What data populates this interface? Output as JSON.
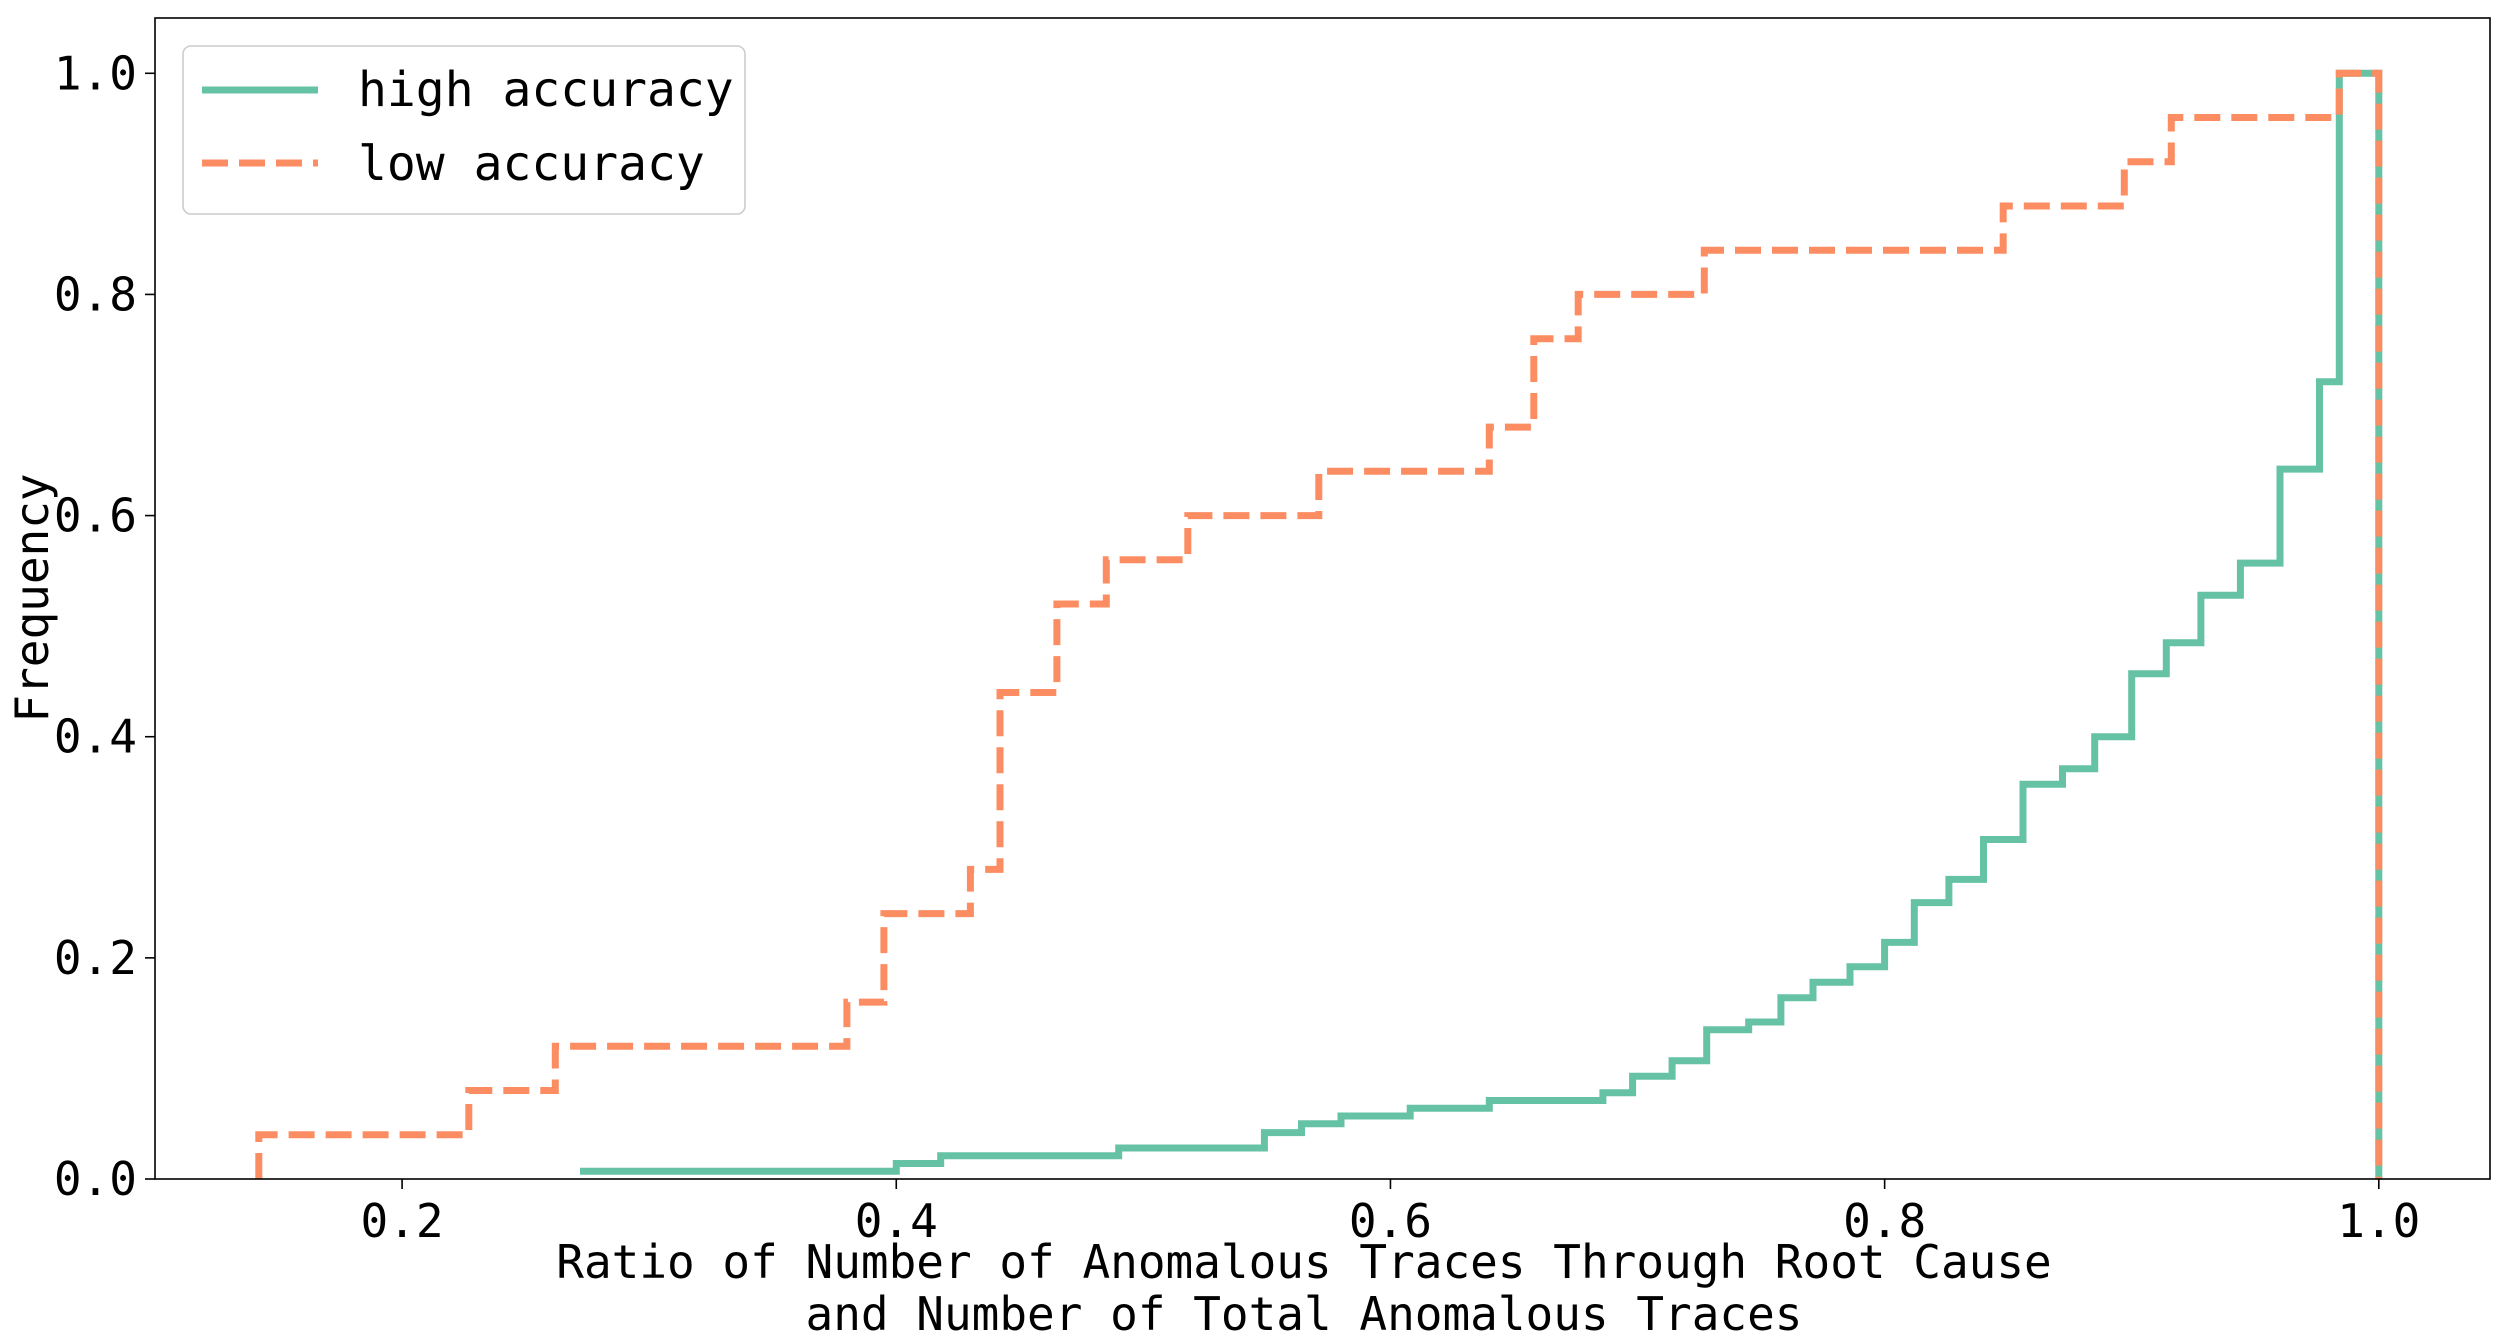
{
  "chart_data": {
    "type": "line",
    "drawstyle": "steps-post",
    "title": "",
    "xlabel_lines": [
      "Ratio of Number of Anomalous Traces Through Root Cause",
      "and Number of Total Anomalous Traces"
    ],
    "ylabel": "Frequency",
    "xlim": [
      0.1,
      1.045
    ],
    "ylim": [
      0,
      1.05
    ],
    "xticks": [
      0.2,
      0.4,
      0.6,
      0.8,
      1.0
    ],
    "xtick_labels": [
      "0.2",
      "0.4",
      "0.6",
      "0.8",
      "1.0"
    ],
    "yticks": [
      0.0,
      0.2,
      0.4,
      0.6,
      0.8,
      1.0
    ],
    "ytick_labels": [
      "0.0",
      "0.2",
      "0.4",
      "0.6",
      "0.8",
      "1.0"
    ],
    "grid": false,
    "legend_position": "top-left",
    "series": [
      {
        "name": "high accuracy",
        "color": "#66c2a5",
        "linestyle": "solid",
        "x": [
          0.272,
          0.4,
          0.418,
          0.49,
          0.549,
          0.564,
          0.58,
          0.608,
          0.64,
          0.686,
          0.698,
          0.714,
          0.728,
          0.745,
          0.758,
          0.771,
          0.786,
          0.8,
          0.812,
          0.826,
          0.84,
          0.856,
          0.872,
          0.885,
          0.9,
          0.914,
          0.928,
          0.944,
          0.96,
          0.976,
          0.984,
          1.0
        ],
        "y": [
          0.007,
          0.014,
          0.021,
          0.028,
          0.042,
          0.05,
          0.057,
          0.064,
          0.071,
          0.078,
          0.093,
          0.107,
          0.135,
          0.142,
          0.164,
          0.178,
          0.192,
          0.214,
          0.25,
          0.271,
          0.307,
          0.357,
          0.371,
          0.4,
          0.457,
          0.485,
          0.528,
          0.557,
          0.642,
          0.721,
          1.0,
          0.0
        ]
      },
      {
        "name": "low accuracy",
        "color": "#fc8d62",
        "linestyle": "dashed",
        "x": [
          0.142,
          0.142,
          0.227,
          0.262,
          0.38,
          0.395,
          0.41,
          0.43,
          0.442,
          0.465,
          0.485,
          0.518,
          0.571,
          0.64,
          0.658,
          0.676,
          0.727,
          0.848,
          0.897,
          0.916,
          0.984,
          1.0
        ],
        "y": [
          0.0,
          0.04,
          0.08,
          0.12,
          0.16,
          0.24,
          0.24,
          0.28,
          0.44,
          0.52,
          0.56,
          0.6,
          0.64,
          0.68,
          0.76,
          0.8,
          0.84,
          0.88,
          0.92,
          0.96,
          1.0,
          0.0
        ]
      }
    ]
  }
}
